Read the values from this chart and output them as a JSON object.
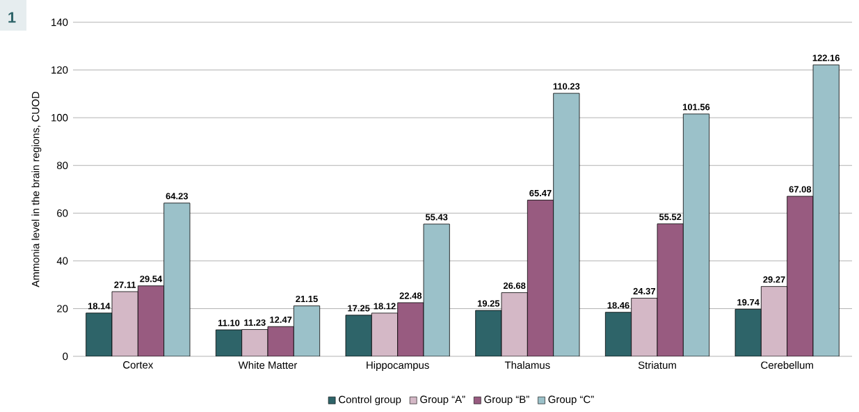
{
  "chart_data": {
    "type": "bar",
    "ylabel": "Ammonia level in the brain regions, CUOD",
    "annotations": [
      "1"
    ],
    "categories": [
      "Cortex",
      "White Matter",
      "Hippocampus",
      "Thalamus",
      "Striatum",
      "Cerebellum"
    ],
    "series": [
      {
        "name": "Control group",
        "color": "#2e6469",
        "values": [
          18.14,
          11.1,
          17.25,
          19.25,
          18.46,
          19.74
        ],
        "value_labels": [
          "18.14",
          "11.10",
          "17.25",
          "19.25",
          "18.46",
          "19.74"
        ]
      },
      {
        "name": "Group “A”",
        "color": "#d4b8c6",
        "values": [
          27.11,
          11.23,
          18.12,
          26.68,
          24.37,
          29.27
        ],
        "value_labels": [
          "27.11",
          "11.23",
          "18.12",
          "26.68",
          "24.37",
          "29.27"
        ]
      },
      {
        "name": "Group “B”",
        "color": "#985b80",
        "values": [
          29.54,
          12.47,
          22.48,
          65.47,
          55.52,
          67.08
        ],
        "value_labels": [
          "29.54",
          "12.47",
          "22.48",
          "65.47",
          "55.52",
          "67.08"
        ]
      },
      {
        "name": "Group “C”",
        "color": "#9bc1c9",
        "values": [
          64.23,
          21.15,
          55.43,
          110.23,
          101.56,
          122.16
        ],
        "value_labels": [
          "64.23",
          "21.15",
          "55.43",
          "110.23",
          "101.56",
          "122.16"
        ]
      }
    ],
    "ylim": [
      0,
      140
    ],
    "yticks": [
      0,
      20,
      40,
      60,
      80,
      100,
      120,
      140
    ],
    "grid": "y",
    "legend": "bottom"
  }
}
